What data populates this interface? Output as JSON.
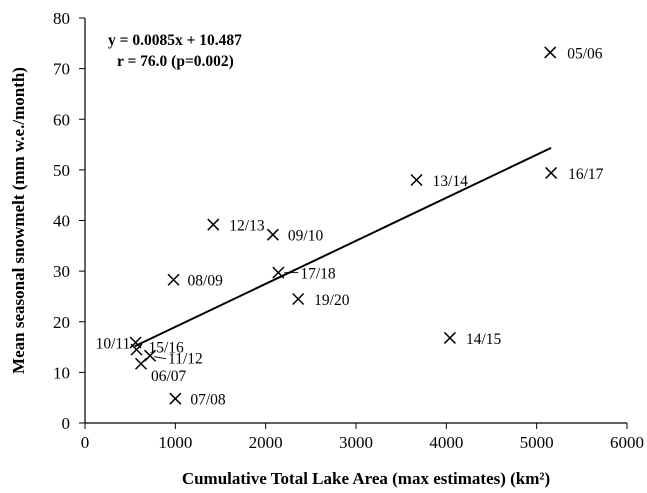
{
  "chart_data": {
    "type": "scatter",
    "xlabel": "Cumulative Total Lake Area (max estimates) (km²)",
    "ylabel": "Mean seasonal snowmelt (mm w.e./month)",
    "xlim": [
      0,
      6000
    ],
    "ylim": [
      0,
      80
    ],
    "x_ticks": [
      0,
      1000,
      2000,
      3000,
      4000,
      5000,
      6000
    ],
    "y_ticks": [
      0,
      10,
      20,
      30,
      40,
      50,
      60,
      70,
      80
    ],
    "grid": false,
    "legend": "none",
    "marker": "x",
    "annotation": {
      "equation": "y = 0.0085x + 10.487",
      "r": "r = 76.0 (p=0.002)"
    },
    "trendline": {
      "slope": 0.0085,
      "intercept": 10.487,
      "x_range": [
        550,
        5160
      ]
    },
    "points": [
      {
        "x": 5150,
        "y": 73.2,
        "label": "05/06"
      },
      {
        "x": 620,
        "y": 11.7,
        "label": "06/07"
      },
      {
        "x": 1000,
        "y": 4.8,
        "label": "07/08"
      },
      {
        "x": 980,
        "y": 28.3,
        "label": "08/09"
      },
      {
        "x": 2080,
        "y": 37.2,
        "label": "09/10"
      },
      {
        "x": 560,
        "y": 15.9,
        "label": "10/11"
      },
      {
        "x": 720,
        "y": 13.3,
        "label": "11/12"
      },
      {
        "x": 1420,
        "y": 39.2,
        "label": "12/13"
      },
      {
        "x": 3670,
        "y": 48.0,
        "label": "13/14"
      },
      {
        "x": 4040,
        "y": 16.8,
        "label": "14/15"
      },
      {
        "x": 570,
        "y": 14.5,
        "label": "15/16"
      },
      {
        "x": 5160,
        "y": 49.4,
        "label": "16/17"
      },
      {
        "x": 2140,
        "y": 29.7,
        "label": "17/18"
      },
      {
        "x": 2360,
        "y": 24.5,
        "label": "19/20"
      }
    ]
  }
}
